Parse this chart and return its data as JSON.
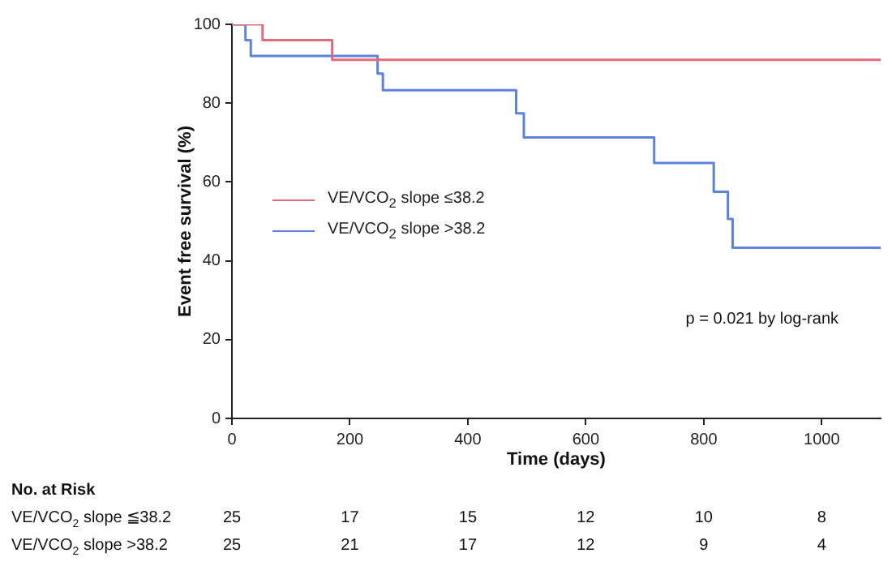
{
  "chart_data": {
    "type": "step",
    "xlabel": "Time (days)",
    "ylabel": "Event free survival (%)",
    "xlim": [
      0,
      1100
    ],
    "xticks": [
      0,
      200,
      400,
      600,
      800,
      1000
    ],
    "ylim": [
      0,
      100
    ],
    "yticks": [
      0,
      20,
      40,
      60,
      80,
      100
    ],
    "grid": false,
    "legend": "left",
    "marker": "none",
    "series": [
      {
        "name": "VE/VCO$_{2}$ slope ≤38.2",
        "color": "#e06a78",
        "x": [
          0,
          52,
          170,
          1100
        ],
        "values": [
          100,
          96,
          91,
          91
        ]
      },
      {
        "name": "VE/VCO$_{2}$ slope >38.2",
        "color": "#5b82dc",
        "x": [
          0,
          23,
          32,
          247,
          256,
          482,
          495,
          716,
          817,
          841,
          849,
          1100
        ],
        "values": [
          100,
          96,
          92,
          87.5,
          83.3,
          77.4,
          71.3,
          64.8,
          57.5,
          50.6,
          43.3,
          43.3
        ]
      }
    ],
    "annotations": [
      "p = 0.021 by log-rank",
      "No. at Risk",
      "VE/VCO$_{2}$ slope ≦38.2",
      "25",
      "17",
      "15",
      "12",
      "10",
      "8",
      "VE/VCO$_{2}$ slope >38.2",
      "25",
      "21",
      "17",
      "12",
      "9",
      "4"
    ]
  }
}
